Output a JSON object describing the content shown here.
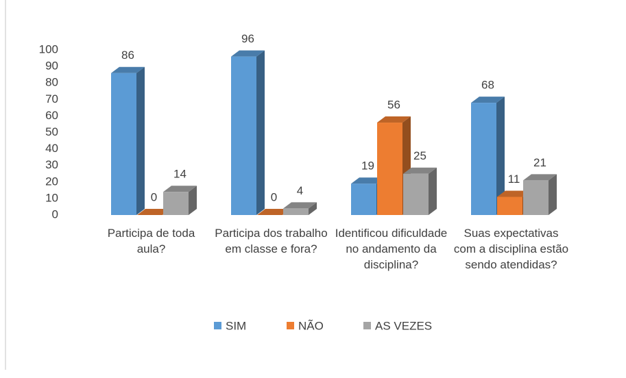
{
  "chart_data": {
    "type": "bar3d",
    "categories": [
      "Participa de toda aula?",
      "Participa dos trabalho em classe e fora?",
      "Identificou dificuldade no andamento da disciplina?",
      "Suas expectativas com a disciplina estão sendo atendidas?"
    ],
    "series": [
      {
        "name": "SIM",
        "color": "#5b9bd5",
        "values": [
          86,
          96,
          19,
          68
        ]
      },
      {
        "name": "NÃO",
        "color": "#ed7d31",
        "values": [
          0,
          0,
          56,
          11
        ]
      },
      {
        "name": "AS VEZES",
        "color": "#a5a5a5",
        "values": [
          14,
          4,
          25,
          21
        ]
      }
    ],
    "ylim": [
      0,
      100
    ],
    "yticks": [
      0,
      10,
      20,
      30,
      40,
      50,
      60,
      70,
      80,
      90,
      100
    ],
    "legend": "bottom"
  }
}
